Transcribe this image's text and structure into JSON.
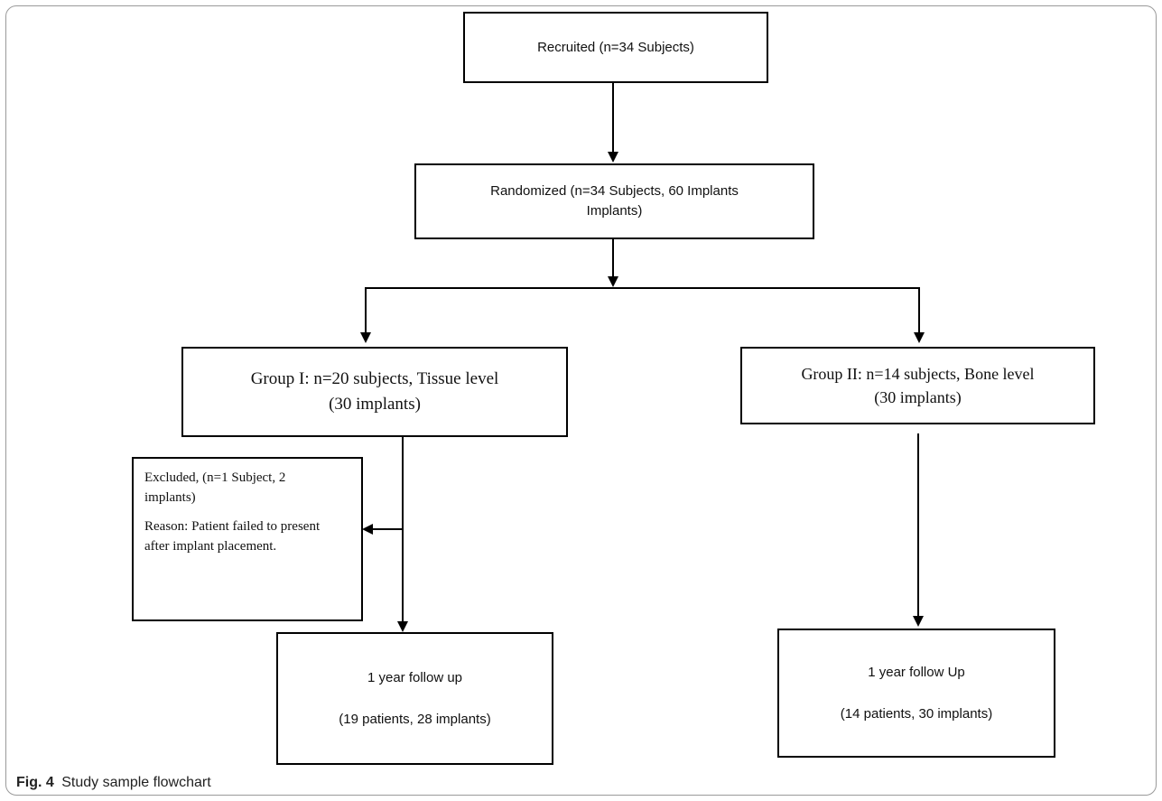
{
  "nodes": {
    "recruited": {
      "lines": [
        "Recruited (n=34 Subjects)"
      ]
    },
    "randomized": {
      "lines": [
        "Randomized (n=34 Subjects, 60 Implants",
        "Implants)"
      ]
    },
    "group1": {
      "lines": [
        "Group I: n=20 subjects, Tissue level",
        "(30 implants)"
      ]
    },
    "group2": {
      "lines": [
        "Group II: n=14 subjects, Bone level",
        "(30 implants)"
      ]
    },
    "excluded": {
      "line1": "Excluded, (n=1 Subject, 2",
      "line2": "implants)",
      "line3": "Reason: Patient failed to present",
      "line4": "after implant placement."
    },
    "followup1": {
      "lines": [
        "1 year follow up",
        "(19 patients, 28 implants)"
      ]
    },
    "followup2": {
      "lines": [
        "1 year follow Up",
        "(14 patients, 30 implants)"
      ]
    }
  },
  "caption": {
    "label": "Fig. 4",
    "text": "Study sample flowchart"
  }
}
